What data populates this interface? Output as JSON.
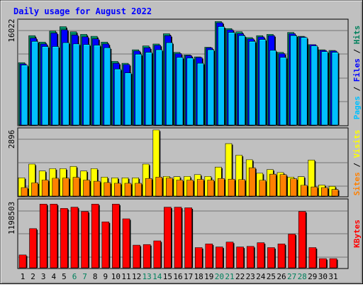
{
  "title": "Daily usage for August 2022",
  "colors": {
    "background": "#c0c0c0",
    "title": "#0000ff",
    "hits": "#00805c",
    "files": "#0000ff",
    "pages": "#00c0ff",
    "visits": "#ffff00",
    "sites": "#ff8000",
    "kbytes": "#ff0000",
    "weekend_day": "#00805c",
    "weekday": "#000000"
  },
  "chart_data": [
    {
      "type": "bar",
      "panel": "hits-files-pages",
      "right_label": {
        "pages": "Pages",
        "files": "Files",
        "hits": "Hits"
      },
      "ytick": "16022",
      "ylim": [
        0,
        16022
      ],
      "categories": [
        "1",
        "2",
        "3",
        "4",
        "5",
        "6",
        "7",
        "8",
        "9",
        "10",
        "11",
        "12",
        "13",
        "14",
        "15",
        "16",
        "17",
        "18",
        "19",
        "20",
        "21",
        "22",
        "23",
        "24",
        "25",
        "26",
        "27",
        "28",
        "29",
        "30",
        "31"
      ],
      "series": [
        {
          "name": "Hits",
          "values": [
            9700,
            13900,
            12900,
            14600,
            15300,
            14500,
            14100,
            13800,
            12900,
            9900,
            9600,
            11700,
            12300,
            12600,
            14200,
            11300,
            10900,
            10600,
            12100,
            16100,
            15000,
            14500,
            13600,
            13900,
            14100,
            11300,
            14400,
            13800,
            12500,
            11700,
            11600
          ]
        },
        {
          "name": "Files",
          "values": [
            9500,
            13500,
            12600,
            14300,
            14800,
            14000,
            13700,
            13400,
            12600,
            9600,
            9400,
            11500,
            12000,
            12400,
            13900,
            11100,
            10800,
            10500,
            12000,
            15900,
            14800,
            14200,
            13400,
            13700,
            13900,
            11100,
            14200,
            13700,
            12500,
            11600,
            11500
          ]
        },
        {
          "name": "Pages",
          "values": [
            9300,
            13000,
            12200,
            12200,
            12800,
            12600,
            12500,
            12400,
            12000,
            8700,
            8100,
            11000,
            11300,
            11700,
            12800,
            10500,
            10400,
            9600,
            11700,
            15300,
            14400,
            13900,
            13000,
            13300,
            11600,
            10500,
            13900,
            13600,
            12300,
            11400,
            11300
          ]
        }
      ]
    },
    {
      "type": "bar",
      "panel": "visits-sites",
      "right_label": {
        "sites": "Sites",
        "visits": "Visits"
      },
      "ytick": "2896",
      "ylim": [
        0,
        2896
      ],
      "categories": [
        "1",
        "2",
        "3",
        "4",
        "5",
        "6",
        "7",
        "8",
        "9",
        "10",
        "11",
        "12",
        "13",
        "14",
        "15",
        "16",
        "17",
        "18",
        "19",
        "20",
        "21",
        "22",
        "23",
        "24",
        "25",
        "26",
        "27",
        "28",
        "29",
        "30",
        "31"
      ],
      "series": [
        {
          "name": "Visits",
          "values": [
            800,
            1400,
            1100,
            1200,
            1200,
            1300,
            1100,
            1200,
            830,
            800,
            800,
            800,
            1400,
            2896,
            860,
            850,
            860,
            940,
            860,
            1270,
            2300,
            1790,
            1590,
            1000,
            1160,
            1030,
            830,
            850,
            1580,
            480,
            430
          ]
        },
        {
          "name": "Sites",
          "values": [
            370,
            580,
            700,
            780,
            790,
            820,
            700,
            650,
            590,
            560,
            560,
            560,
            770,
            830,
            790,
            700,
            700,
            730,
            700,
            770,
            740,
            720,
            1240,
            690,
            960,
            940,
            760,
            470,
            400,
            370,
            290
          ]
        }
      ]
    },
    {
      "type": "bar",
      "panel": "kbytes",
      "right_label": {
        "kbytes": "KBytes"
      },
      "ytick": "1198503",
      "ylim": [
        0,
        1198503
      ],
      "categories": [
        "1",
        "2",
        "3",
        "4",
        "5",
        "6",
        "7",
        "8",
        "9",
        "10",
        "11",
        "12",
        "13",
        "14",
        "15",
        "16",
        "17",
        "18",
        "19",
        "20",
        "21",
        "22",
        "23",
        "24",
        "25",
        "26",
        "27",
        "28",
        "29",
        "30",
        "31"
      ],
      "series": [
        {
          "name": "KBytes",
          "values": [
            210000,
            640000,
            1040000,
            1040000,
            970000,
            990000,
            920000,
            1040000,
            750000,
            1040000,
            800000,
            370000,
            380000,
            440000,
            990000,
            990000,
            980000,
            330000,
            390000,
            340000,
            420000,
            340000,
            350000,
            410000,
            330000,
            390000,
            550000,
            920000,
            330000,
            150000,
            150000
          ]
        }
      ]
    }
  ],
  "weekend_days": [
    "6",
    "7",
    "13",
    "14",
    "20",
    "21",
    "27",
    "28"
  ]
}
